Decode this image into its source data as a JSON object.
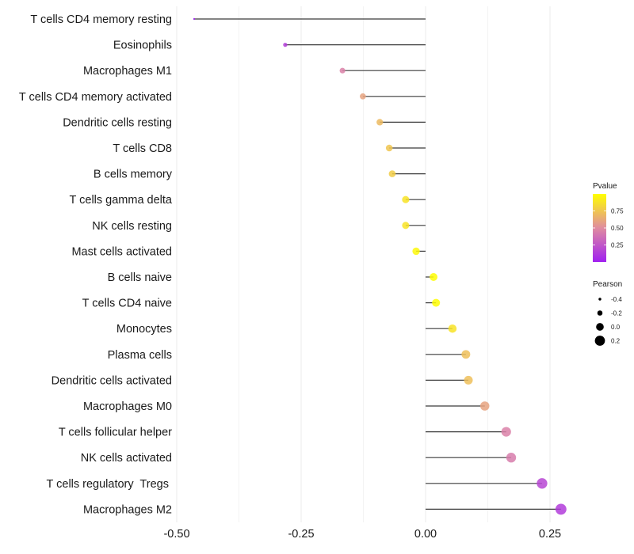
{
  "chart_data": {
    "type": "lollipop",
    "title": "",
    "xlabel": "",
    "ylabel": "",
    "xlim": [
      -0.5,
      0.3
    ],
    "x_ticks": [
      -0.5,
      -0.25,
      0.0,
      0.25
    ],
    "x_tick_labels": [
      "-0.50",
      "-0.25",
      "0.00",
      "0.25"
    ],
    "grid": true,
    "categories": [
      "T cells CD4 memory resting",
      "Eosinophils",
      "Macrophages M1",
      "T cells CD4 memory activated",
      "Dendritic cells resting",
      "T cells CD8",
      "B cells memory",
      "T cells gamma delta",
      "NK cells resting",
      "Mast cells activated",
      "B cells naive",
      "T cells CD4 naive",
      "Monocytes",
      "Plasma cells",
      "Dendritic cells activated",
      "Macrophages M0",
      "T cells follicular helper",
      "NK cells activated",
      "T cells regulatory  Tregs ",
      "Macrophages M2"
    ],
    "pearson": [
      -0.465,
      -0.282,
      -0.167,
      -0.126,
      -0.092,
      -0.073,
      -0.067,
      -0.04,
      -0.04,
      -0.019,
      0.016,
      0.021,
      0.054,
      0.081,
      0.086,
      0.119,
      0.162,
      0.172,
      0.234,
      0.272
    ],
    "pvalue": [
      0.001,
      0.15,
      0.45,
      0.6,
      0.7,
      0.75,
      0.78,
      0.88,
      0.88,
      0.97,
      0.99,
      0.99,
      0.88,
      0.72,
      0.72,
      0.6,
      0.45,
      0.43,
      0.18,
      0.13
    ],
    "legend": {
      "color": {
        "title": "Pvalue",
        "breaks": [
          0.25,
          0.5,
          0.75
        ],
        "labels": [
          "0.25",
          "0.50",
          "0.75"
        ],
        "range": [
          0,
          1
        ],
        "low_color": "#a020f0",
        "mid_color": "#e08ca0",
        "high_color": "#ffff00"
      },
      "size": {
        "title": "Pearson",
        "breaks": [
          -0.4,
          -0.2,
          0.0,
          0.2
        ],
        "labels": [
          "-0.4",
          "-0.2",
          "0.0",
          "0.2"
        ]
      },
      "placement": "right"
    }
  }
}
